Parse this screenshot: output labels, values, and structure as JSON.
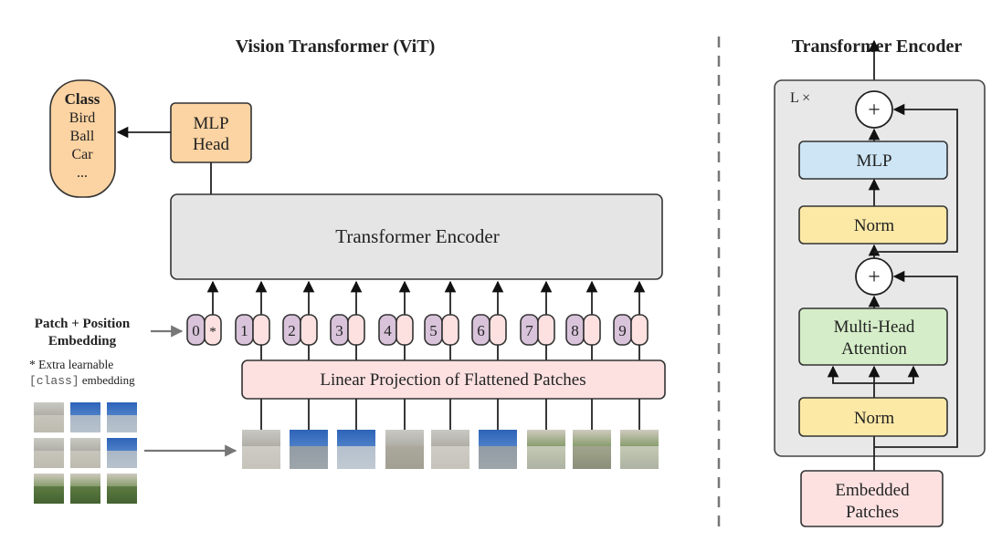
{
  "vit": {
    "title": "Vision Transformer (ViT)",
    "class_box": {
      "heading": "Class",
      "items": [
        "Bird",
        "Ball",
        "Car",
        "..."
      ]
    },
    "mlp_head": [
      "MLP",
      "Head"
    ],
    "encoder": "Transformer Encoder",
    "embedding_label": [
      "Patch + Position",
      "Embedding"
    ],
    "extra_note": {
      "star": "* Extra learnable",
      "code": "[class]",
      "rest": " embedding"
    },
    "tokens": [
      {
        "position": "0",
        "patch": "*"
      },
      {
        "position": "1",
        "patch": ""
      },
      {
        "position": "2",
        "patch": ""
      },
      {
        "position": "3",
        "patch": ""
      },
      {
        "position": "4",
        "patch": ""
      },
      {
        "position": "5",
        "patch": ""
      },
      {
        "position": "6",
        "patch": ""
      },
      {
        "position": "7",
        "patch": ""
      },
      {
        "position": "8",
        "patch": ""
      },
      {
        "position": "9",
        "patch": ""
      }
    ],
    "linear_projection": "Linear Projection of Flattened Patches"
  },
  "encoder_detail": {
    "title": "Transformer Encoder",
    "repeat": "L ×",
    "plus": "+",
    "mlp": "MLP",
    "norm": "Norm",
    "attention": [
      "Multi-Head",
      "Attention"
    ],
    "embedded": [
      "Embedded",
      "Patches"
    ]
  },
  "colors": {
    "orange": "#fcd3a2",
    "gray": "#e5e5e5",
    "purple": "#d8c3da",
    "pink": "#fde1e1",
    "blue": "#cde5f4",
    "yellow": "#fde9a6",
    "green": "#d5edc8"
  }
}
